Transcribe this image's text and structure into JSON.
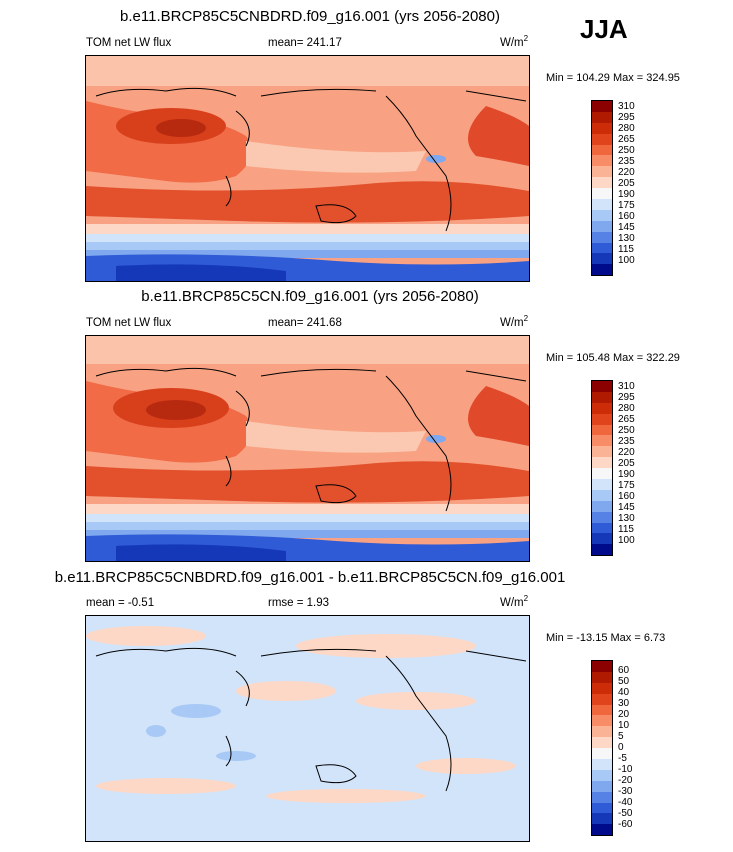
{
  "season": "JJA",
  "panels": [
    {
      "title": "b.e11.BRCP85C5CNBDRD.f09_g16.001 (yrs 2056-2080)",
      "left_label": "TOM net LW flux",
      "center_label": "mean= 241.17",
      "units_base": "W/m",
      "units_exp": "2",
      "minmax": "Min = 104.29 Max = 324.95",
      "levels": [
        "310",
        "295",
        "280",
        "265",
        "250",
        "235",
        "220",
        "205",
        "190",
        "175",
        "160",
        "145",
        "130",
        "115",
        "100"
      ]
    },
    {
      "title": "b.e11.BRCP85C5CN.f09_g16.001 (yrs 2056-2080)",
      "left_label": "TOM net LW flux",
      "center_label": "mean= 241.68",
      "units_base": "W/m",
      "units_exp": "2",
      "minmax": "Min = 105.48 Max = 322.29",
      "levels": [
        "310",
        "295",
        "280",
        "265",
        "250",
        "235",
        "220",
        "205",
        "190",
        "175",
        "160",
        "145",
        "130",
        "115",
        "100"
      ]
    },
    {
      "title": "b.e11.BRCP85C5CNBDRD.f09_g16.001 - b.e11.BRCP85C5CN.f09_g16.001",
      "left_label": "mean =  -0.51",
      "center_label": "rmse =   1.93",
      "units_base": "W/m",
      "units_exp": "2",
      "minmax": "Min = -13.15 Max =   6.73",
      "levels": [
        "60",
        "50",
        "40",
        "30",
        "20",
        "10",
        "5",
        "0",
        "-5",
        "-10",
        "-20",
        "-30",
        "-40",
        "-50",
        "-60"
      ]
    }
  ],
  "colorbar_colors": [
    "#8b0000",
    "#b01a00",
    "#cc2c08",
    "#e0441c",
    "#f0673d",
    "#f78c66",
    "#fbb395",
    "#fdd8c6",
    "#f7f7f7",
    "#d2e4fa",
    "#a8c9f5",
    "#7fa8ee",
    "#5582e4",
    "#2f5bd6",
    "#1438b8",
    "#000b8c"
  ]
}
